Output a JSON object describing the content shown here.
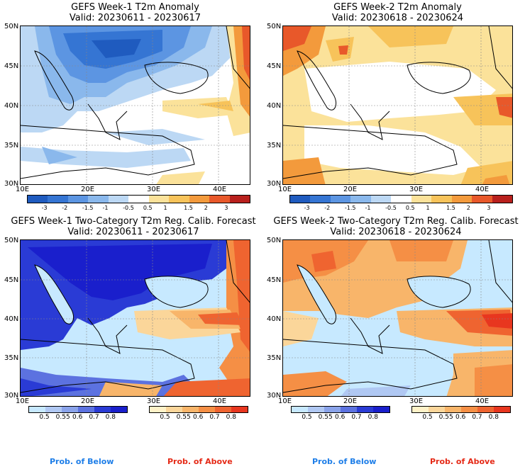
{
  "panels": [
    {
      "title1": "GEFS Week-1 T2m Anomaly",
      "title2": "Valid: 20230611 - 20230617"
    },
    {
      "title1": "GEFS Week-2 T2m Anomaly",
      "title2": "Valid: 20230618 - 20230624"
    },
    {
      "title1": "GEFS Week-1 Two-Category T2m Reg. Calib. Forecast",
      "title2": "Valid: 20230611 - 20230617"
    },
    {
      "title1": "GEFS Week-2 Two-Category T2m Reg. Calib. Forecast",
      "title2": "Valid: 20230618 - 20230624"
    }
  ],
  "lat_labels": [
    "50N",
    "45N",
    "40N",
    "35N",
    "30N"
  ],
  "lon_labels": [
    "10E",
    "20E",
    "30E",
    "40E"
  ],
  "anomaly_colorbar": {
    "labels": [
      "-3",
      "-2",
      "-1.5",
      "-1",
      "-0.5",
      "0.5",
      "1",
      "1.5",
      "2",
      "3"
    ],
    "colors": [
      "#1f5bbf",
      "#3575d3",
      "#5c95e2",
      "#8ab8ec",
      "#bcd8f4",
      "#ffffff",
      "#fbe29a",
      "#f7c35a",
      "#f39a3c",
      "#e8582a",
      "#b8201d"
    ]
  },
  "prob_below": {
    "labels": [
      "0.5",
      "0.55",
      "0.6",
      "0.7",
      "0.8"
    ],
    "colors": [
      "#c7e9ff",
      "#b0c8f3",
      "#8aa3ea",
      "#5c72e0",
      "#2a3bd5",
      "#1a1fcc"
    ]
  },
  "prob_above": {
    "labels": [
      "0.5",
      "0.55",
      "0.6",
      "0.7",
      "0.8"
    ],
    "colors": [
      "#fff2c8",
      "#fbd69a",
      "#f8b56a",
      "#f58f45",
      "#ef6430",
      "#e8361f"
    ]
  },
  "footer": {
    "below": "Prob. of Below",
    "above": "Prob. of Above"
  },
  "footer_colors": {
    "below": "#1e7ee8",
    "above": "#e52a17"
  }
}
